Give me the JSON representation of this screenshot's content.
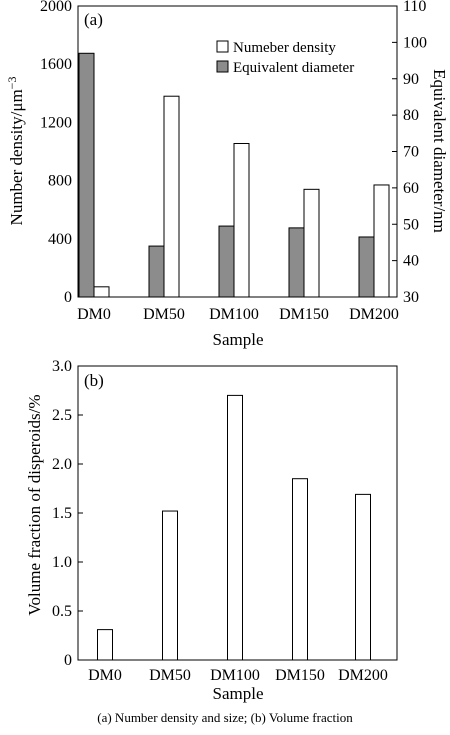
{
  "caption": "(a) Number density and size; (b) Volume fraction",
  "chart_data": [
    {
      "type": "bar",
      "panel_label": "(a)",
      "categories": [
        "DM0",
        "DM50",
        "DM100",
        "DM150",
        "DM200"
      ],
      "series": [
        {
          "name": "Numeber density",
          "axis": "left",
          "fill": "#ffffff",
          "values": [
            70,
            1380,
            1055,
            740,
            770
          ]
        },
        {
          "name": "Equivalent diameter",
          "axis": "right",
          "fill": "#8c8c8c",
          "values": [
            97,
            44,
            49.5,
            49,
            46.5
          ]
        }
      ],
      "xlabel": "Sample",
      "ylabel_left": "Number density/μm",
      "ylabel_left_sup": "−3",
      "ylabel_right": "Equivalent diameter/nm",
      "ylim_left": [
        0,
        2000
      ],
      "yticks_left": [
        0,
        400,
        800,
        1200,
        1600,
        2000
      ],
      "ylim_right": [
        30,
        110
      ],
      "yticks_right": [
        30,
        40,
        50,
        60,
        70,
        80,
        90,
        100,
        110
      ],
      "legend_position": "top-right",
      "grid": false
    },
    {
      "type": "bar",
      "panel_label": "(b)",
      "categories": [
        "DM0",
        "DM50",
        "DM100",
        "DM150",
        "DM200"
      ],
      "series": [
        {
          "fill": "#ffffff",
          "values": [
            0.31,
            1.52,
            2.7,
            1.85,
            1.69
          ]
        }
      ],
      "xlabel": "Sample",
      "ylabel": "Volume fraction of disperoids/%",
      "ylim": [
        0,
        3.0
      ],
      "yticks": [
        "0",
        "0.5",
        "1.0",
        "1.5",
        "2.0",
        "2.5",
        "3.0"
      ],
      "grid": false
    }
  ]
}
